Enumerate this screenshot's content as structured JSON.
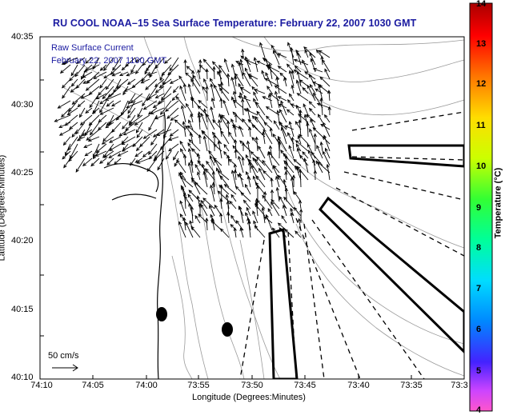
{
  "title": "RU COOL  NOAA–15  Sea Surface Temperature:  February 22, 2007 1030 GMT",
  "legend": {
    "line1": "Raw Surface Current",
    "line2": "February 22, 2007 1100 GMT"
  },
  "axes": {
    "xlabel": "Longitude (Degrees:Minutes)",
    "ylabel": "Latitude (Degrees:Minutes)",
    "xticks": [
      "74:10",
      "74:05",
      "74:00",
      "73:55",
      "73:50",
      "73:45",
      "73:40",
      "73:35",
      "73:3"
    ],
    "yticks": [
      "40:35",
      "40:30",
      "40:25",
      "40:20",
      "40:15",
      "40:10"
    ]
  },
  "colorbar": {
    "label": "Temperature (°C)",
    "ticks": [
      "14",
      "13",
      "12",
      "11",
      "10",
      "9",
      "8",
      "7",
      "6",
      "5",
      "4"
    ],
    "colors": [
      "#ff55cc",
      "#cc44ff",
      "#4422ff",
      "#0088ff",
      "#00ddff",
      "#00ff99",
      "#33ff33",
      "#ccff00",
      "#ffdd00",
      "#ff7700",
      "#ff0000",
      "#aa0000"
    ]
  },
  "scale": {
    "label": "50 cm/s"
  },
  "map_features": {
    "coastline_color": "#000000",
    "bathymetry_color": "#999999",
    "vector_color": "#000000"
  }
}
